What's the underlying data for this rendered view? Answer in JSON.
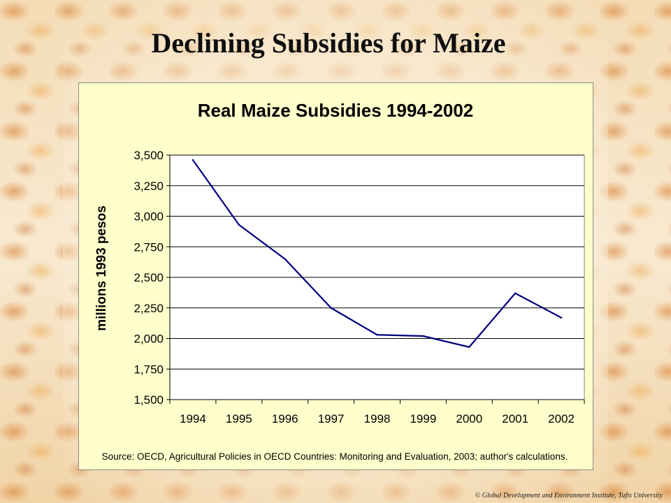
{
  "slide": {
    "title": "Declining Subsidies for Maize",
    "footer": "© Global Development and Environment Institute, Tufts University"
  },
  "colors": {
    "chart_background": "#ffffcc",
    "plot_background": "#ffffff",
    "line": "#000080",
    "grid": "#000000"
  },
  "chart_data": {
    "type": "line",
    "title": "Real Maize Subsidies 1994-2002",
    "xlabel": "",
    "ylabel": "millions 1993 pesos",
    "categories": [
      "1994",
      "1995",
      "1996",
      "1997",
      "1998",
      "1999",
      "2000",
      "2001",
      "2002"
    ],
    "series": [
      {
        "values": [
          3460,
          2930,
          2650,
          2250,
          2030,
          2020,
          1930,
          2370,
          2170
        ]
      }
    ],
    "ylim": [
      1500,
      3500
    ],
    "yticks": [
      "1,500",
      "1,750",
      "2,000",
      "2,250",
      "2,500",
      "2,750",
      "3,000",
      "3,250",
      "3,500"
    ],
    "grid": true,
    "legend": "none",
    "source": "Source: OECD, Agricultural Policies in OECD Countries: Monitoring and Evaluation, 2003; author's calculations."
  }
}
